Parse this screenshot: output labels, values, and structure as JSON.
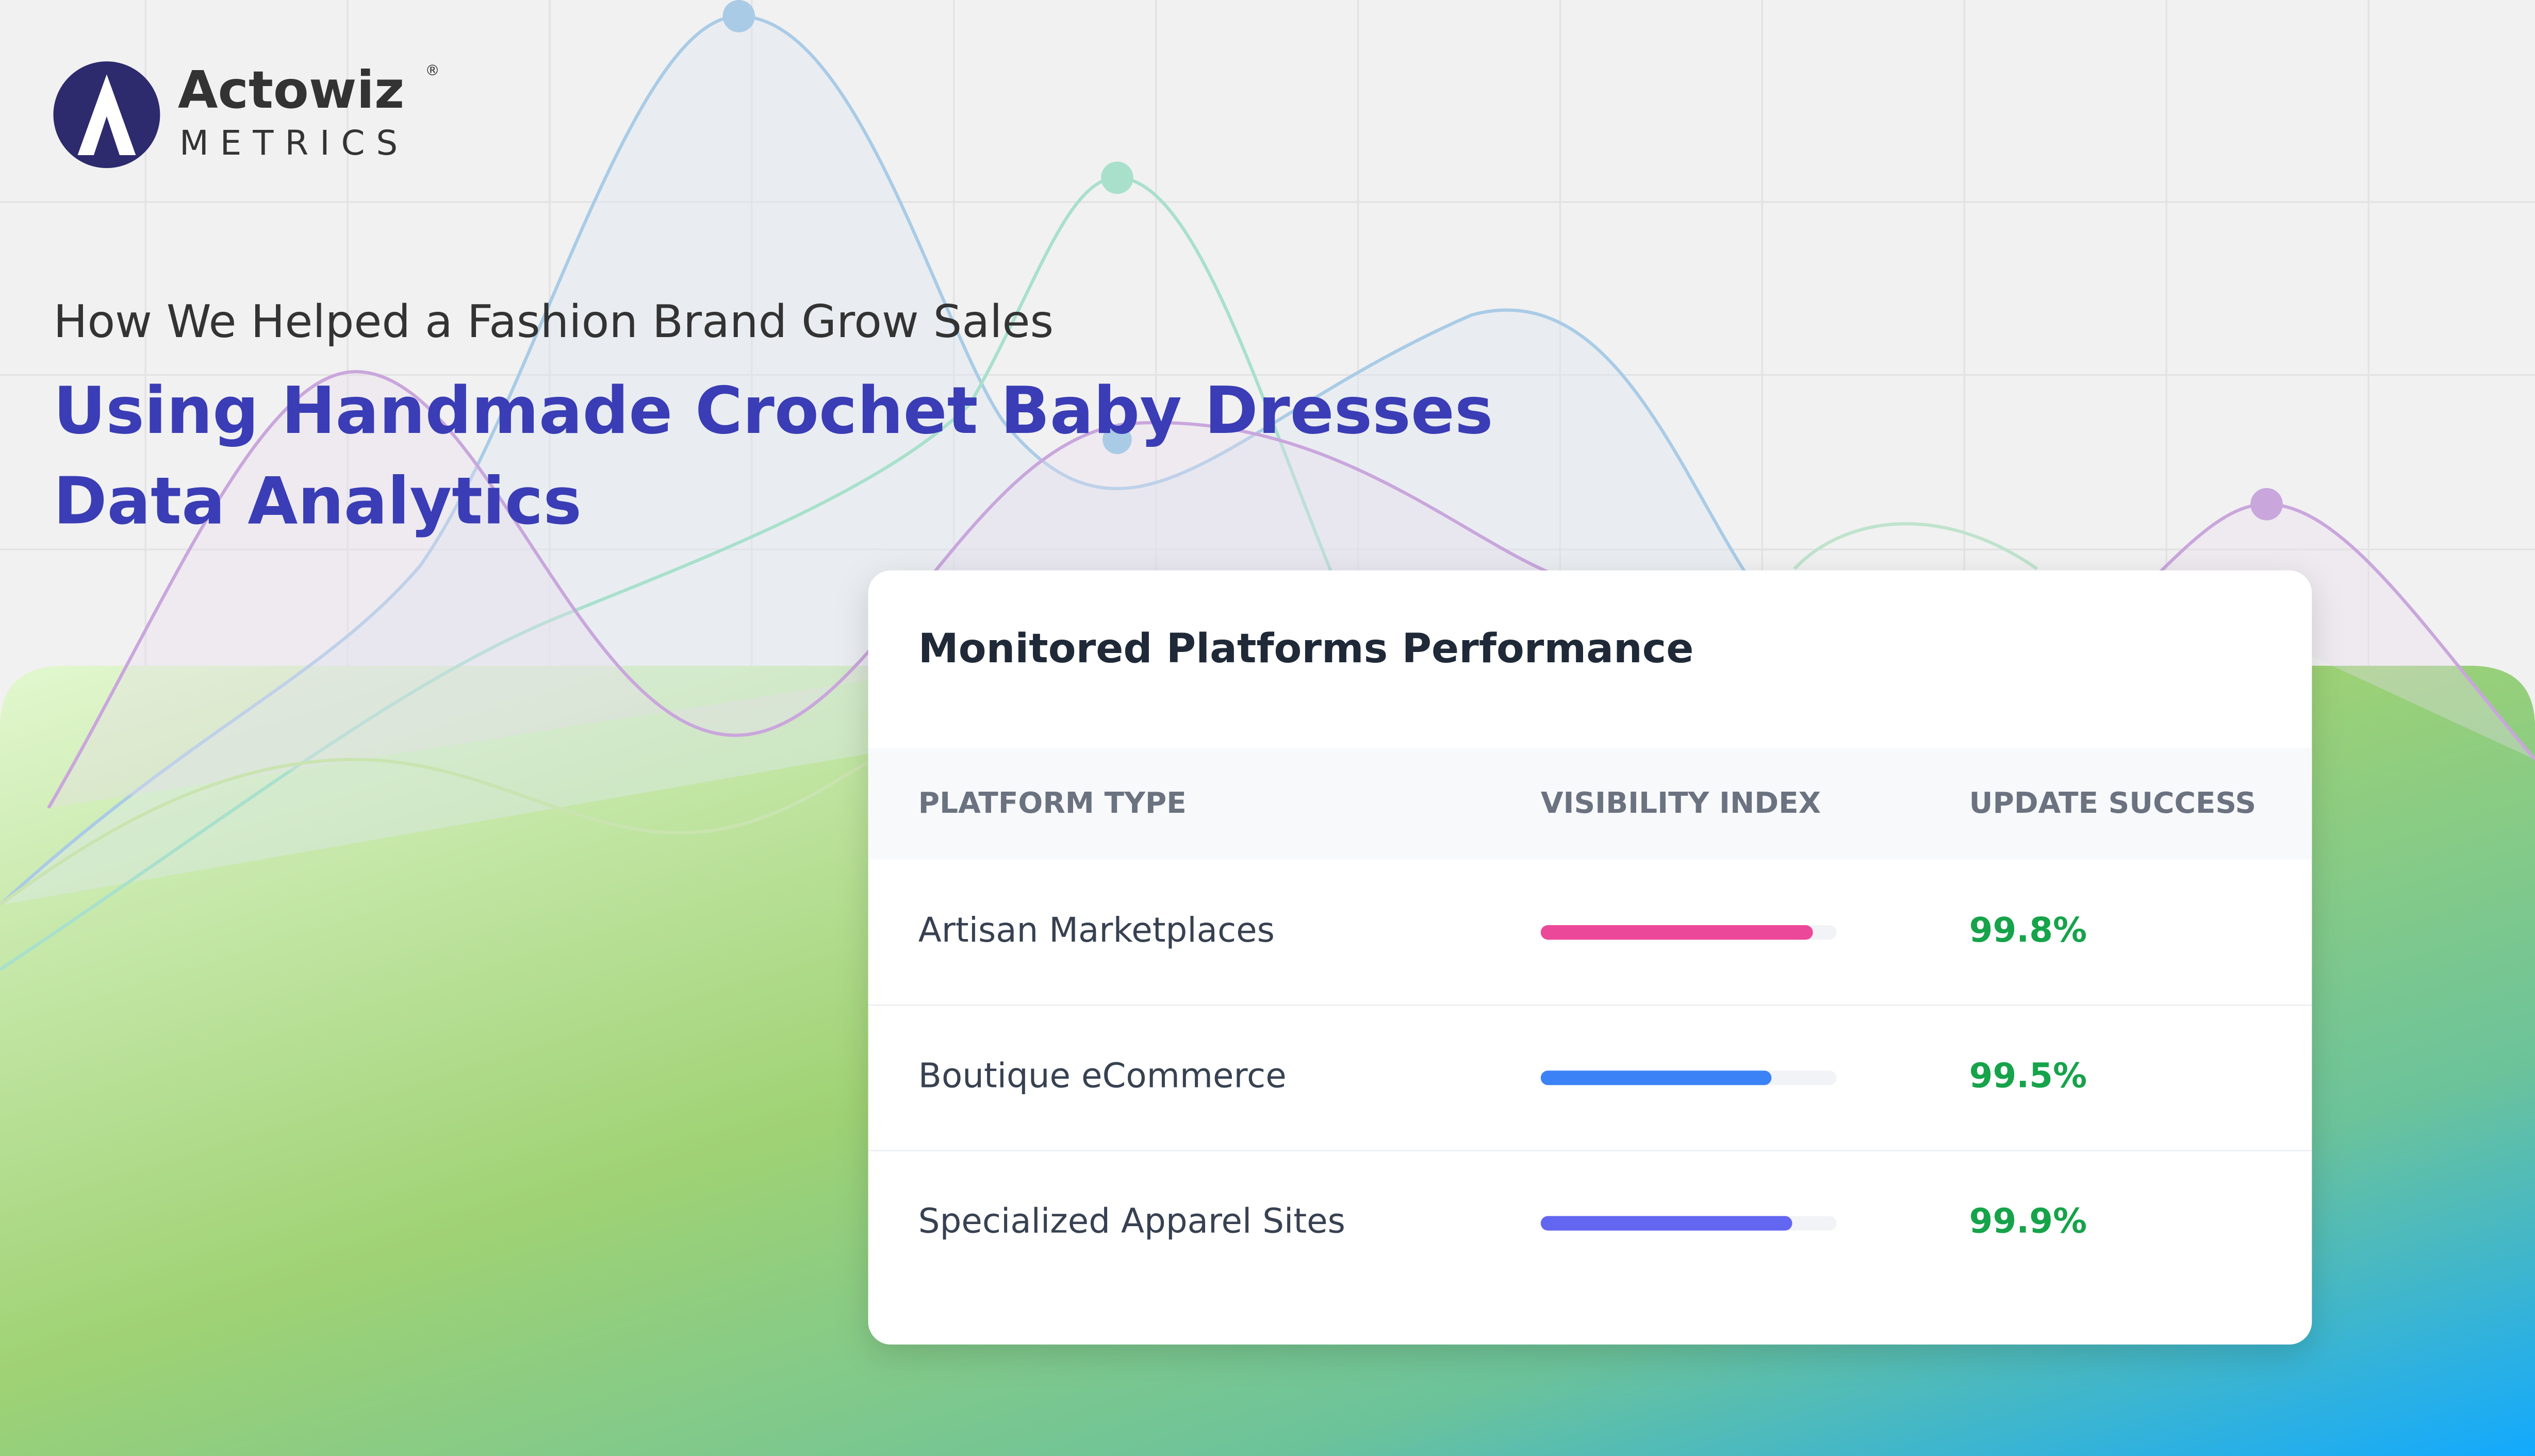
{
  "logo": {
    "name": "Actowiz",
    "sub": "METRICS",
    "mark": "®"
  },
  "header": {
    "subtitle": "How We Helped a Fashion Brand Grow Sales",
    "title": [
      "Using Handmade Crochet Baby Dresses",
      "Data Analytics"
    ]
  },
  "table": {
    "title": "Monitored Platforms Performance",
    "columns": [
      "PLATFORM TYPE",
      "VISIBILITY INDEX",
      "UPDATE SUCCESS"
    ],
    "xlim": [
      0,
      100
    ],
    "rows": [
      {
        "name": "Artisan Marketplaces",
        "visibility": 92,
        "color": "#ec4899",
        "success": "99.8%"
      },
      {
        "name": "Boutique eCommerce",
        "visibility": 78,
        "color": "#3b82f6",
        "success": "99.5%"
      },
      {
        "name": "Specialized Apparel Sites",
        "visibility": 85,
        "color": "#6366f1",
        "success": "99.9%"
      }
    ]
  }
}
